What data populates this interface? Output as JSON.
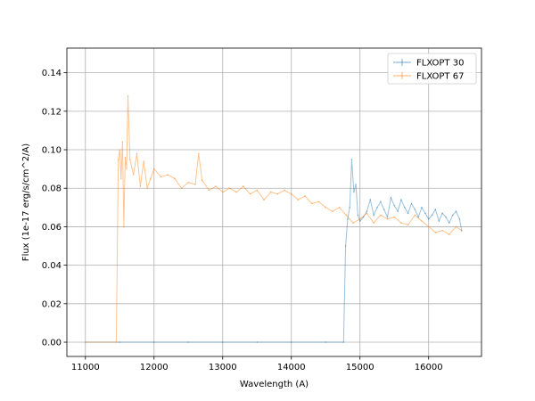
{
  "chart_data": {
    "type": "line",
    "title": "",
    "xlabel": "Wavelength (A)",
    "ylabel": "Flux (1e-17 erg/s/cm^2/A)",
    "xlim": [
      10730,
      16770
    ],
    "ylim": [
      -0.0074,
      0.1528
    ],
    "xticks": [
      11000,
      12000,
      13000,
      14000,
      15000,
      16000
    ],
    "yticks": [
      0.0,
      0.02,
      0.04,
      0.06,
      0.08,
      0.1,
      0.12,
      0.14
    ],
    "ytick_labels": [
      "0.00",
      "0.02",
      "0.04",
      "0.06",
      "0.08",
      "0.10",
      "0.12",
      "0.14"
    ],
    "grid": true,
    "legend_position": "upper-right",
    "series": [
      {
        "name": "FLXOPT 30",
        "color": "#1f77b4",
        "x": [
          11000,
          11500,
          12000,
          12500,
          13000,
          13500,
          14000,
          14500,
          14760,
          14790,
          14820,
          14850,
          14880,
          14910,
          14940,
          14970,
          15000,
          15050,
          15100,
          15150,
          15200,
          15250,
          15300,
          15350,
          15400,
          15450,
          15500,
          15550,
          15600,
          15650,
          15700,
          15750,
          15800,
          15850,
          15900,
          15950,
          16000,
          16050,
          16100,
          16150,
          16200,
          16250,
          16300,
          16350,
          16400,
          16450,
          16480
        ],
        "y": [
          0.0,
          0.0,
          0.0,
          0.0,
          0.0,
          0.0,
          0.0,
          0.0,
          0.0,
          0.05,
          0.064,
          0.07,
          0.095,
          0.078,
          0.082,
          0.066,
          0.063,
          0.065,
          0.068,
          0.074,
          0.066,
          0.07,
          0.073,
          0.069,
          0.065,
          0.075,
          0.071,
          0.068,
          0.074,
          0.07,
          0.067,
          0.072,
          0.069,
          0.065,
          0.07,
          0.067,
          0.064,
          0.066,
          0.069,
          0.063,
          0.067,
          0.065,
          0.062,
          0.066,
          0.068,
          0.064,
          0.058
        ]
      },
      {
        "name": "FLXOPT 67",
        "color": "#ff7f0e",
        "x": [
          11000,
          11450,
          11480,
          11500,
          11520,
          11540,
          11560,
          11580,
          11600,
          11620,
          11650,
          11700,
          11750,
          11800,
          11850,
          11900,
          11950,
          12000,
          12100,
          12200,
          12300,
          12400,
          12500,
          12600,
          12650,
          12700,
          12800,
          12900,
          13000,
          13100,
          13200,
          13300,
          13400,
          13500,
          13600,
          13700,
          13800,
          13900,
          14000,
          14100,
          14200,
          14300,
          14400,
          14500,
          14600,
          14700,
          14800,
          14900,
          15000,
          15100,
          15200,
          15300,
          15400,
          15500,
          15600,
          15700,
          15800,
          15900,
          16000,
          16100,
          16200,
          16300,
          16400,
          16480
        ],
        "y": [
          0.0,
          0.0,
          0.095,
          0.1,
          0.085,
          0.104,
          0.06,
          0.096,
          0.09,
          0.128,
          0.095,
          0.087,
          0.098,
          0.081,
          0.094,
          0.08,
          0.085,
          0.09,
          0.086,
          0.087,
          0.085,
          0.08,
          0.083,
          0.082,
          0.098,
          0.084,
          0.079,
          0.081,
          0.078,
          0.08,
          0.078,
          0.081,
          0.077,
          0.079,
          0.074,
          0.078,
          0.077,
          0.079,
          0.077,
          0.074,
          0.076,
          0.072,
          0.073,
          0.07,
          0.068,
          0.07,
          0.066,
          0.062,
          0.064,
          0.067,
          0.062,
          0.066,
          0.064,
          0.065,
          0.062,
          0.061,
          0.066,
          0.063,
          0.06,
          0.057,
          0.058,
          0.056,
          0.06,
          0.058
        ]
      }
    ]
  }
}
